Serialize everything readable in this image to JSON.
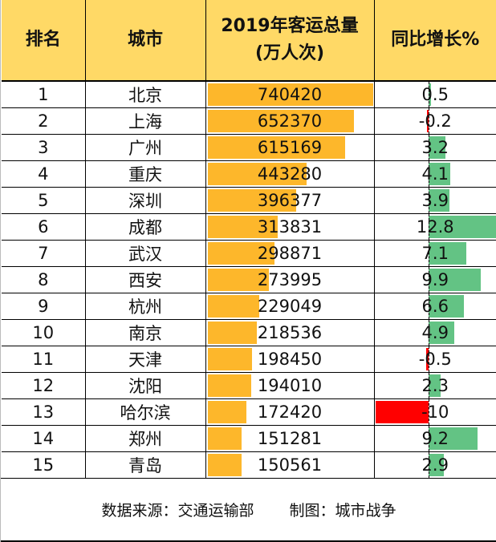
{
  "headers": {
    "rank": "排名",
    "city": "城市",
    "volume_line1": "2019年客运总量",
    "volume_line2": "(万人次)",
    "growth": "同比增长%"
  },
  "rows": [
    {
      "rank": "1",
      "city": "北京",
      "volume": "740420",
      "growth": "0.5"
    },
    {
      "rank": "2",
      "city": "上海",
      "volume": "652370",
      "growth": "-0.2"
    },
    {
      "rank": "3",
      "city": "广州",
      "volume": "615169",
      "growth": "3.2"
    },
    {
      "rank": "4",
      "city": "重庆",
      "volume": "443280",
      "growth": "4.1"
    },
    {
      "rank": "5",
      "city": "深圳",
      "volume": "396377",
      "growth": "3.9"
    },
    {
      "rank": "6",
      "city": "成都",
      "volume": "313831",
      "growth": "12.8"
    },
    {
      "rank": "7",
      "city": "武汉",
      "volume": "298871",
      "growth": "7.1"
    },
    {
      "rank": "8",
      "city": "西安",
      "volume": "273995",
      "growth": "9.9"
    },
    {
      "rank": "9",
      "city": "杭州",
      "volume": "229049",
      "growth": "6.6"
    },
    {
      "rank": "10",
      "city": "南京",
      "volume": "218536",
      "growth": "4.9"
    },
    {
      "rank": "11",
      "city": "天津",
      "volume": "198450",
      "growth": "-0.5"
    },
    {
      "rank": "12",
      "city": "沈阳",
      "volume": "194010",
      "growth": "2.3"
    },
    {
      "rank": "13",
      "city": "哈尔滨",
      "volume": "172420",
      "growth": "-10"
    },
    {
      "rank": "14",
      "city": "郑州",
      "volume": "151281",
      "growth": "9.2"
    },
    {
      "rank": "15",
      "city": "青岛",
      "volume": "150561",
      "growth": "2.9"
    }
  ],
  "footer": {
    "source": "数据来源：交通运输部",
    "author": "制图：城市战争"
  },
  "colors": {
    "header_bg": "#ffd966",
    "volume_bar": "#fdb72b",
    "positive_bar": "#63c384",
    "negative_bar": "#ff0000"
  },
  "chart_data": {
    "type": "table",
    "title": "2019年客运总量(万人次)",
    "columns": [
      "排名",
      "城市",
      "2019年客运总量(万人次)",
      "同比增长%"
    ],
    "categories": [
      "北京",
      "上海",
      "广州",
      "重庆",
      "深圳",
      "成都",
      "武汉",
      "西安",
      "杭州",
      "南京",
      "天津",
      "沈阳",
      "哈尔滨",
      "郑州",
      "青岛"
    ],
    "series": [
      {
        "name": "2019年客运总量(万人次)",
        "values": [
          740420,
          652370,
          615169,
          443280,
          396377,
          313831,
          298871,
          273995,
          229049,
          218536,
          198450,
          194010,
          172420,
          151281,
          150561
        ]
      },
      {
        "name": "同比增长%",
        "values": [
          0.5,
          -0.2,
          3.2,
          4.1,
          3.9,
          12.8,
          7.1,
          9.9,
          6.6,
          4.9,
          -0.5,
          2.3,
          -10,
          9.2,
          2.9
        ]
      }
    ]
  }
}
